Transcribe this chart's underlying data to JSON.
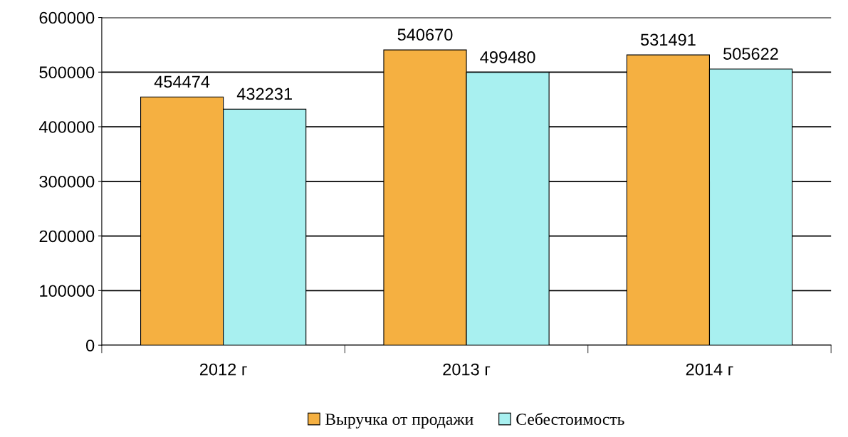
{
  "chart_data": {
    "type": "bar",
    "categories": [
      "2012 г",
      "2013 г",
      "2014 г"
    ],
    "series": [
      {
        "name": "Выручка от продажи",
        "color": "#f5b041",
        "values": [
          454474,
          540670,
          531491
        ]
      },
      {
        "name": "Себестоимость",
        "color": "#a8f0f0",
        "values": [
          432231,
          499480,
          505622
        ]
      }
    ],
    "ylim": [
      0,
      600000
    ],
    "yticks": [
      0,
      100000,
      200000,
      300000,
      400000,
      500000,
      600000
    ],
    "grid": "y",
    "legend": "bottom",
    "data_labels": true
  }
}
